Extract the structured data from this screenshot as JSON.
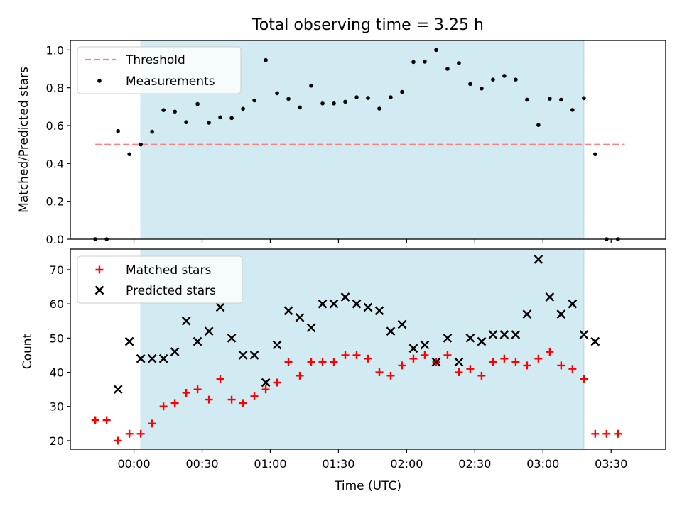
{
  "title": "Total observing time = 3.25 h",
  "colors": {
    "shade": "#add8e6",
    "threshold": "#ff7f7f",
    "measurements": "#000000",
    "matched": "#ff0000",
    "predicted": "#000000"
  },
  "chart_data": [
    {
      "type": "scatter",
      "title": "Total observing time = 3.25 h",
      "ylabel": "Matched/Predicted stars",
      "xlim": [
        "-00:28",
        "03:54"
      ],
      "ylim": [
        0,
        1.05
      ],
      "yticks": [
        "0.0",
        "0.2",
        "0.4",
        "0.6",
        "0.8",
        "1.0"
      ],
      "grid": false,
      "legend_position": "top-left",
      "shaded_span": [
        "00:03",
        "03:18"
      ],
      "threshold": {
        "name": "Threshold",
        "value": 0.5,
        "x_range": [
          "-00:17",
          "03:36"
        ],
        "style": "dashed"
      },
      "series": [
        {
          "name": "Measurements",
          "marker": "dot",
          "x": [
            "-00:17",
            "-00:12",
            "-00:07",
            "-00:02",
            "00:03",
            "00:08",
            "00:13",
            "00:18",
            "00:23",
            "00:28",
            "00:33",
            "00:38",
            "00:43",
            "00:48",
            "00:53",
            "00:58",
            "01:03",
            "01:08",
            "01:13",
            "01:18",
            "01:23",
            "01:28",
            "01:33",
            "01:38",
            "01:43",
            "01:48",
            "01:53",
            "01:58",
            "02:03",
            "02:08",
            "02:13",
            "02:18",
            "02:23",
            "02:28",
            "02:33",
            "02:38",
            "02:43",
            "02:48",
            "02:53",
            "02:58",
            "03:03",
            "03:08",
            "03:13",
            "03:18",
            "03:23",
            "03:28",
            "03:33"
          ],
          "values": [
            0.0,
            0.0,
            0.571,
            0.449,
            0.5,
            0.568,
            0.682,
            0.674,
            0.618,
            0.714,
            0.615,
            0.644,
            0.64,
            0.689,
            0.733,
            0.946,
            0.771,
            0.741,
            0.696,
            0.811,
            0.717,
            0.717,
            0.726,
            0.75,
            0.746,
            0.69,
            0.75,
            0.778,
            0.936,
            0.938,
            1.0,
            0.9,
            0.93,
            0.82,
            0.796,
            0.843,
            0.863,
            0.843,
            0.737,
            0.603,
            0.742,
            0.737,
            0.683,
            0.745,
            0.449,
            0.0,
            0.0
          ]
        }
      ]
    },
    {
      "type": "scatter",
      "xlabel": "Time (UTC)",
      "ylabel": "Count",
      "xlim": [
        "-00:28",
        "03:54"
      ],
      "ylim": [
        17.5,
        76
      ],
      "yticks": [
        "20",
        "30",
        "40",
        "50",
        "60",
        "70"
      ],
      "xticks": [
        "00:00",
        "00:30",
        "01:00",
        "01:30",
        "02:00",
        "02:30",
        "03:00",
        "03:30"
      ],
      "grid": false,
      "legend_position": "top-left",
      "shaded_span": [
        "00:03",
        "03:18"
      ],
      "series": [
        {
          "name": "Matched stars",
          "marker": "plus",
          "x": [
            "-00:17",
            "-00:12",
            "-00:07",
            "-00:02",
            "00:03",
            "00:08",
            "00:13",
            "00:18",
            "00:23",
            "00:28",
            "00:33",
            "00:38",
            "00:43",
            "00:48",
            "00:53",
            "00:58",
            "01:03",
            "01:08",
            "01:13",
            "01:18",
            "01:23",
            "01:28",
            "01:33",
            "01:38",
            "01:43",
            "01:48",
            "01:53",
            "01:58",
            "02:03",
            "02:08",
            "02:13",
            "02:18",
            "02:23",
            "02:28",
            "02:33",
            "02:38",
            "02:43",
            "02:48",
            "02:53",
            "02:58",
            "03:03",
            "03:08",
            "03:13",
            "03:18",
            "03:23",
            "03:28",
            "03:33"
          ],
          "values": [
            26,
            26,
            20,
            22,
            22,
            25,
            30,
            31,
            34,
            35,
            32,
            38,
            32,
            31,
            33,
            35,
            37,
            43,
            39,
            43,
            43,
            43,
            45,
            45,
            44,
            40,
            39,
            42,
            44,
            45,
            43,
            45,
            40,
            41,
            39,
            43,
            44,
            43,
            42,
            44,
            46,
            42,
            41,
            38,
            22,
            22,
            22
          ]
        },
        {
          "name": "Predicted stars",
          "marker": "x",
          "x": [
            "-00:07",
            "-00:02",
            "00:03",
            "00:08",
            "00:13",
            "00:18",
            "00:23",
            "00:28",
            "00:33",
            "00:38",
            "00:43",
            "00:48",
            "00:53",
            "00:58",
            "01:03",
            "01:08",
            "01:13",
            "01:18",
            "01:23",
            "01:28",
            "01:33",
            "01:38",
            "01:43",
            "01:48",
            "01:53",
            "01:58",
            "02:03",
            "02:08",
            "02:13",
            "02:18",
            "02:23",
            "02:28",
            "02:33",
            "02:38",
            "02:43",
            "02:48",
            "02:53",
            "02:58",
            "03:03",
            "03:08",
            "03:13",
            "03:18",
            "03:23"
          ],
          "values": [
            35,
            49,
            44,
            44,
            44,
            46,
            55,
            49,
            52,
            59,
            50,
            45,
            45,
            37,
            48,
            58,
            56,
            53,
            60,
            60,
            62,
            60,
            59,
            58,
            52,
            54,
            47,
            48,
            43,
            50,
            43,
            50,
            49,
            51,
            51,
            51,
            57,
            73,
            62,
            57,
            60,
            51,
            49
          ]
        }
      ]
    }
  ]
}
